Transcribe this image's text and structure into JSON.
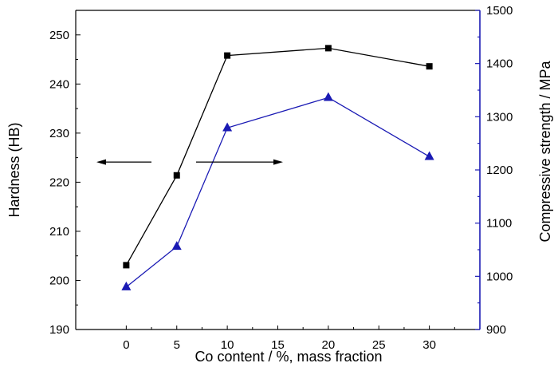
{
  "chart_data": {
    "type": "line",
    "title": "",
    "xlabel": "Co content / %, mass fraction",
    "ylabel": "Hardness (HB)",
    "y2label": "Compressive strength / MPa",
    "xlim": [
      -5,
      35
    ],
    "ylim": [
      190,
      255
    ],
    "y2lim": [
      900,
      1500
    ],
    "x_ticks": [
      "0",
      "5",
      "10",
      "15",
      "20",
      "25",
      "30"
    ],
    "y_ticks": [
      "190",
      "200",
      "210",
      "220",
      "230",
      "240",
      "250"
    ],
    "y2_ticks": [
      "900",
      "1000",
      "1100",
      "1200",
      "1300",
      "1400",
      "1500"
    ],
    "series": [
      {
        "axis": "left",
        "marker": "square",
        "color": "#000000",
        "points": [
          [
            0,
            203.1
          ],
          [
            5,
            221.4
          ],
          [
            10,
            245.8
          ],
          [
            20,
            247.3
          ],
          [
            30,
            243.6
          ]
        ]
      },
      {
        "axis": "right",
        "marker": "triangle",
        "color": "#1a1ab4",
        "points": [
          [
            0,
            980
          ],
          [
            5,
            1056
          ],
          [
            10,
            1279
          ],
          [
            20,
            1336
          ],
          [
            30,
            1225
          ]
        ]
      }
    ],
    "annotations": [
      {
        "type": "arrow",
        "direction": "left",
        "points_to": "left-axis"
      },
      {
        "type": "arrow",
        "direction": "right",
        "points_to": "right-axis"
      }
    ],
    "grid": false,
    "legend": "none"
  },
  "colors": {
    "left_axis": "#000000",
    "right_axis": "#1a1ab4"
  }
}
